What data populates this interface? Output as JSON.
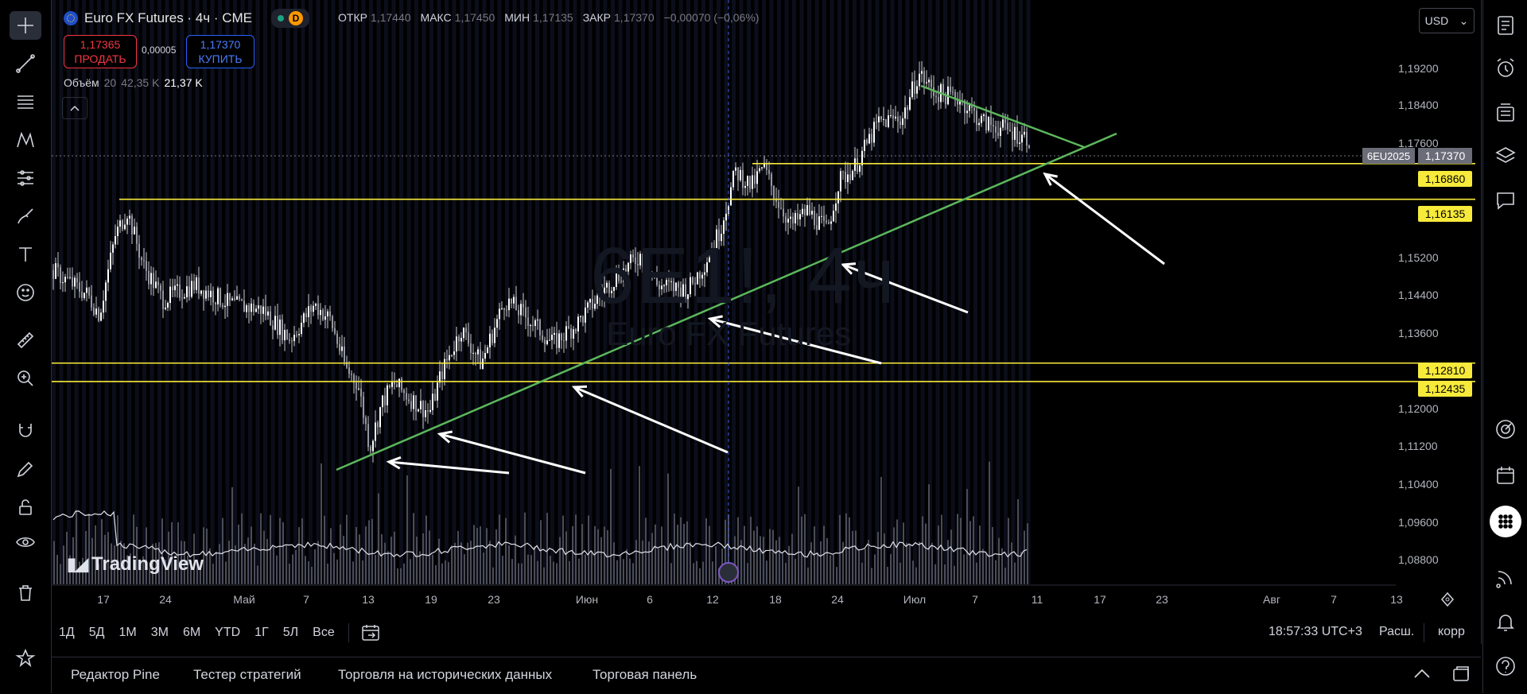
{
  "header": {
    "symbol": "Euro FX Futures · 4ч · CME",
    "status_badge": "D",
    "ohlc": [
      {
        "label": "ОТКР",
        "value": "1,17440"
      },
      {
        "label": "МАКС",
        "value": "1,17450"
      },
      {
        "label": "МИН",
        "value": "1,17135"
      },
      {
        "label": "ЗАКР",
        "value": "1,17370"
      }
    ],
    "change": "−0,00070 (−0,06%)"
  },
  "trade": {
    "sell_price": "1,17365",
    "sell_label": "ПРОДАТЬ",
    "spread": "0,00005",
    "buy_price": "1,17370",
    "buy_label": "КУПИТЬ"
  },
  "volume": {
    "label": "Объём",
    "length": "20",
    "ma_value": "42,35 K",
    "value": "21,37 K"
  },
  "watermark": {
    "symbol": "6E1!, 4ч",
    "name": "Euro FX Futures"
  },
  "logo": {
    "text": "TradingView"
  },
  "currency": {
    "value": "USD"
  },
  "price_axis": {
    "ticks": [
      "1,19200",
      "1,18400",
      "1,17600",
      "1,15200",
      "1,14400",
      "1,13600",
      "1,12000",
      "1,11200",
      "1,10400",
      "1,09600",
      "1,08800"
    ],
    "symbol_tag": "6EU2025",
    "current_price": "1,17370",
    "level_tags": [
      "1,16860",
      "1,16135",
      "1,12810",
      "1,12435"
    ]
  },
  "time_axis": {
    "ticks": [
      "17",
      "24",
      "Май",
      "7",
      "13",
      "19",
      "23",
      "Июн",
      "6",
      "12",
      "18",
      "24",
      "Июл",
      "7",
      "11",
      "17",
      "23",
      "Авг",
      "7",
      "13"
    ]
  },
  "range_buttons": [
    "1Д",
    "5Д",
    "1М",
    "3М",
    "6М",
    "YTD",
    "1Г",
    "5Л",
    "Все"
  ],
  "status_bar": {
    "clock": "18:57:33 UTC+3",
    "extended": "Расш.",
    "adjust": "корр"
  },
  "bottom_tabs": [
    "Редактор Pine",
    "Тестер стратегий",
    "Торговля на исторических данных",
    "Торговая панель"
  ],
  "chart_data": {
    "type": "candlestick",
    "y_range": [
      1.084,
      1.196
    ],
    "current_price": 1.1737,
    "horizontal_levels": [
      1.1686,
      1.16135,
      1.1281,
      1.12435
    ],
    "colors": {
      "levels": "#f7ea3a",
      "trendlines": "#5cb85c",
      "arrows": "#ffffff",
      "price_tag": "#f7ea3a"
    }
  }
}
